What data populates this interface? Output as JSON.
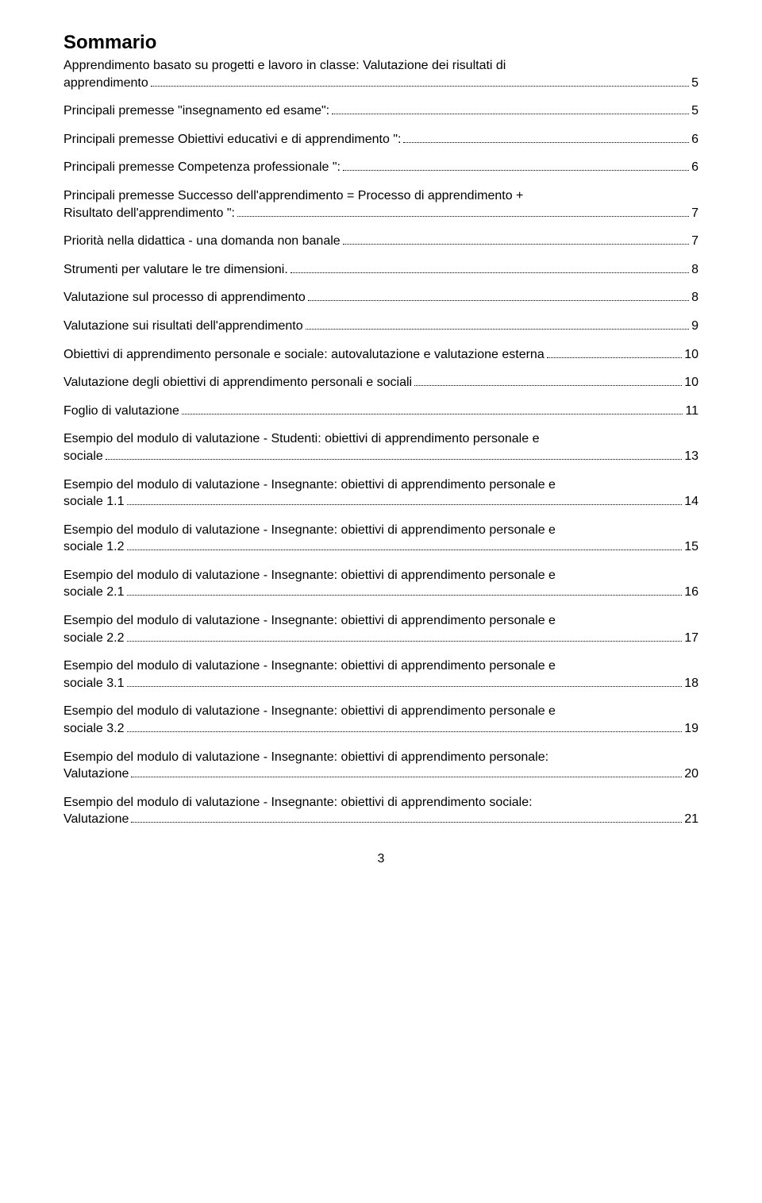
{
  "title": "Sommario",
  "page_number": "3",
  "font": {
    "family": "Arial",
    "title_size_pt": 18,
    "body_size_pt": 12,
    "color": "#000000"
  },
  "background_color": "#ffffff",
  "entries": [
    {
      "text": "Apprendimento basato su progetti e lavoro in classe: Valutazione dei risultati di",
      "text2": "apprendimento",
      "page": "5",
      "wrap": true,
      "tight_above": true
    },
    {
      "text": "Principali premesse \"insegnamento ed esame\":",
      "page": "5"
    },
    {
      "text": "Principali premesse Obiettivi educativi e di apprendimento \":",
      "page": "6"
    },
    {
      "text": "Principali premesse Competenza professionale \":",
      "page": "6"
    },
    {
      "text": "Principali premesse Successo dell'apprendimento = Processo di apprendimento +",
      "text2": "Risultato dell'apprendimento \":",
      "page": "7",
      "wrap": true
    },
    {
      "text": "Priorità nella didattica - una domanda non banale",
      "page": "7"
    },
    {
      "text": "Strumenti per valutare le tre dimensioni.",
      "page": "8"
    },
    {
      "text": "Valutazione sul processo di apprendimento",
      "page": "8"
    },
    {
      "text": "Valutazione sui risultati dell'apprendimento",
      "page": "9"
    },
    {
      "text": "Obiettivi di apprendimento personale e sociale: autovalutazione e valutazione esterna",
      "page": "10"
    },
    {
      "text": "Valutazione degli obiettivi di apprendimento personali e sociali",
      "page": "10"
    },
    {
      "text": "Foglio di valutazione",
      "page": "11"
    },
    {
      "text": "Esempio del modulo di valutazione - Studenti: obiettivi di apprendimento personale e",
      "text2": "sociale",
      "page": "13",
      "wrap": true
    },
    {
      "text": "Esempio del modulo di valutazione - Insegnante: obiettivi di apprendimento personale e",
      "text2": "sociale 1.1",
      "page": "14",
      "wrap": true
    },
    {
      "text": "Esempio del modulo di valutazione - Insegnante: obiettivi di apprendimento personale e",
      "text2": "sociale 1.2",
      "page": "15",
      "wrap": true
    },
    {
      "text": "Esempio del modulo di valutazione - Insegnante: obiettivi di apprendimento personale e",
      "text2": "sociale 2.1",
      "page": "16",
      "wrap": true
    },
    {
      "text": "Esempio del modulo di valutazione - Insegnante: obiettivi di apprendimento personale e",
      "text2": "sociale 2.2",
      "page": "17",
      "wrap": true
    },
    {
      "text": "Esempio del modulo di valutazione - Insegnante: obiettivi di apprendimento personale e",
      "text2": "sociale 3.1",
      "page": "18",
      "wrap": true
    },
    {
      "text": "Esempio del modulo di valutazione - Insegnante: obiettivi di apprendimento personale e",
      "text2": "sociale 3.2",
      "page": "19",
      "wrap": true
    },
    {
      "text": "Esempio del modulo di valutazione - Insegnante: obiettivi di apprendimento personale:",
      "text2": "Valutazione",
      "page": "20",
      "wrap": true
    },
    {
      "text": "Esempio del modulo di valutazione - Insegnante: obiettivi di apprendimento sociale:",
      "text2": "Valutazione",
      "page": "21",
      "wrap": true
    }
  ]
}
